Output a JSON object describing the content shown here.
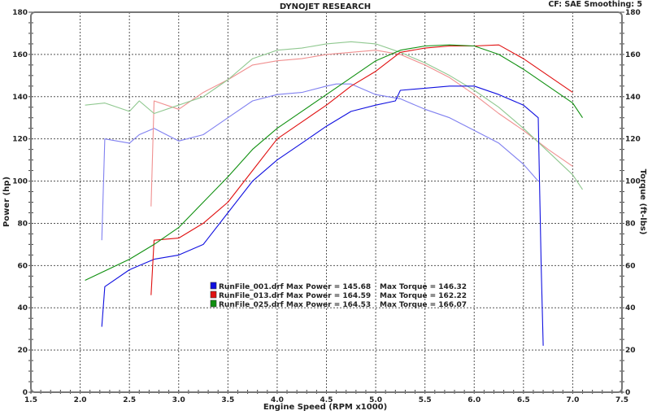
{
  "header": {
    "title": "DYNOJET RESEARCH",
    "settings": "CF: SAE  Smoothing: 5"
  },
  "chart_data": {
    "type": "line",
    "title": "DYNOJET RESEARCH",
    "xlabel": "Engine Speed (RPM x1000)",
    "ylabel": "Power (hp)",
    "y2label": "Torque (ft-lbs)",
    "xlim": [
      1.5,
      7.5
    ],
    "ylim": [
      0,
      180
    ],
    "y2lim": [
      0,
      180
    ],
    "xticks": [
      "1.5",
      "2.0",
      "2.5",
      "3.0",
      "3.5",
      "4.0",
      "4.5",
      "5.0",
      "5.5",
      "6.0",
      "6.5",
      "7.0",
      "7.5"
    ],
    "yticks": [
      "0",
      "20",
      "40",
      "60",
      "80",
      "100",
      "120",
      "140",
      "160",
      "180"
    ],
    "grid": true,
    "legend_placement": "center-bottom",
    "legend": [
      {
        "file": "RunFile_001.drf",
        "power": "Max Power = 145.68",
        "torque": "Max Torque = 146.32",
        "color": "#1010e0"
      },
      {
        "file": "RunFile_013.drf",
        "power": "Max Power = 164.59",
        "torque": "Max Torque = 162.22",
        "color": "#e01010"
      },
      {
        "file": "RunFile_025.drf",
        "power": "Max Power = 164.53",
        "torque": "Max Torque = 166.07",
        "color": "#109010"
      }
    ],
    "series": [
      {
        "run": "RunFile_001.drf",
        "kind": "power",
        "axis": "left",
        "color": "#1010e0",
        "x": [
          2.22,
          2.25,
          2.5,
          2.75,
          3.0,
          3.25,
          3.5,
          3.75,
          4.0,
          4.25,
          4.5,
          4.75,
          5.0,
          5.2,
          5.25,
          5.5,
          5.75,
          6.0,
          6.25,
          6.5,
          6.65,
          6.68,
          6.7
        ],
        "y": [
          31,
          50,
          58,
          63,
          65,
          70,
          85,
          100,
          110,
          118,
          126,
          133,
          136,
          138,
          143,
          144,
          145,
          145,
          141,
          136,
          130,
          60,
          22
        ]
      },
      {
        "run": "RunFile_013.drf",
        "kind": "power",
        "axis": "left",
        "color": "#e01010",
        "x": [
          2.72,
          2.75,
          3.0,
          3.25,
          3.5,
          3.75,
          4.0,
          4.25,
          4.5,
          4.75,
          5.0,
          5.25,
          5.5,
          5.75,
          6.0,
          6.25,
          6.5,
          6.75,
          7.0
        ],
        "y": [
          46,
          72,
          73,
          80,
          90,
          105,
          120,
          128,
          136,
          145,
          152,
          161,
          163,
          164,
          164,
          164.5,
          158,
          150,
          142
        ]
      },
      {
        "run": "RunFile_025.drf",
        "kind": "power",
        "axis": "left",
        "color": "#109010",
        "x": [
          2.05,
          2.5,
          2.75,
          3.0,
          3.25,
          3.5,
          3.75,
          4.0,
          4.25,
          4.5,
          4.75,
          5.0,
          5.25,
          5.5,
          5.75,
          6.0,
          6.25,
          6.5,
          6.75,
          7.0,
          7.1
        ],
        "y": [
          53,
          63,
          70,
          78,
          90,
          102,
          115,
          125,
          133,
          141,
          149,
          157,
          162,
          164,
          164.5,
          164,
          160,
          153,
          145,
          137,
          130
        ]
      },
      {
        "run": "RunFile_001.drf",
        "kind": "torque",
        "axis": "right",
        "color": "#8080f0",
        "x": [
          2.22,
          2.25,
          2.5,
          2.6,
          2.75,
          3.0,
          3.25,
          3.5,
          3.75,
          4.0,
          4.25,
          4.5,
          4.6,
          4.75,
          5.0,
          5.25,
          5.5,
          5.75,
          6.0,
          6.25,
          6.5,
          6.65
        ],
        "y": [
          72,
          120,
          118,
          122,
          125,
          119,
          122,
          130,
          138,
          141,
          142,
          145,
          146,
          146,
          141,
          139,
          134,
          130,
          124,
          118,
          108,
          100
        ]
      },
      {
        "run": "RunFile_013.drf",
        "kind": "torque",
        "axis": "right",
        "color": "#f09090",
        "x": [
          2.72,
          2.75,
          3.0,
          3.25,
          3.5,
          3.75,
          4.0,
          4.25,
          4.5,
          4.75,
          5.0,
          5.25,
          5.5,
          5.75,
          6.0,
          6.25,
          6.5,
          6.75,
          7.0
        ],
        "y": [
          88,
          138,
          134,
          142,
          148,
          155,
          157,
          158,
          160,
          161,
          162,
          160,
          155,
          149,
          141,
          132,
          124,
          115,
          107
        ]
      },
      {
        "run": "RunFile_025.drf",
        "kind": "torque",
        "axis": "right",
        "color": "#90c890",
        "x": [
          2.05,
          2.25,
          2.5,
          2.6,
          2.75,
          3.0,
          3.25,
          3.5,
          3.75,
          4.0,
          4.25,
          4.5,
          4.75,
          5.0,
          5.25,
          5.5,
          5.75,
          6.0,
          6.25,
          6.5,
          6.75,
          7.0,
          7.1
        ],
        "y": [
          136,
          137,
          133,
          138,
          132,
          136,
          140,
          148,
          158,
          162,
          163,
          165,
          166,
          165,
          161,
          156,
          150,
          143,
          135,
          125,
          114,
          103,
          96
        ]
      }
    ]
  }
}
